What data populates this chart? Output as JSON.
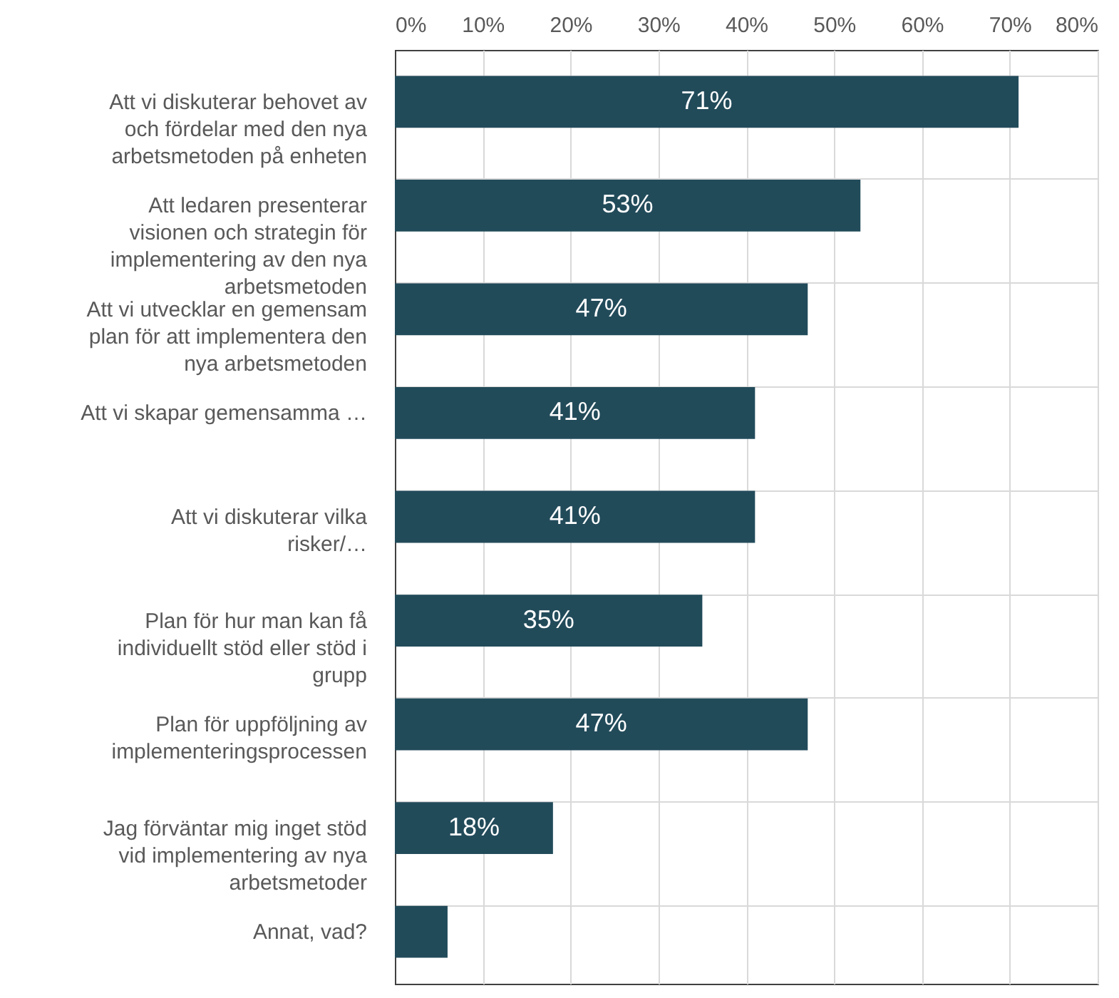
{
  "chart_data": {
    "type": "bar",
    "orientation": "horizontal",
    "categories": [
      "Att vi diskuterar behovet av och fördelar med den nya arbetsmetoden på enheten",
      "Att ledaren presenterar visionen och strategin för implementering av den nya arbetsmetoden",
      "Att vi utvecklar en gemensam plan för att implementera den nya arbetsmetoden",
      "Att vi skapar gemensamma …",
      "Att vi diskuterar vilka risker/…",
      "Plan för hur man kan få individuellt stöd eller stöd i grupp",
      "Plan för uppföljning av implementeringsprocessen",
      "Jag förväntar mig inget stöd vid implementering av nya arbetsmetoder",
      "Annat, vad?"
    ],
    "values": [
      71,
      53,
      47,
      41,
      41,
      35,
      47,
      18,
      6
    ],
    "value_labels": [
      "71%",
      "53%",
      "47%",
      "41%",
      "41%",
      "35%",
      "47%",
      "18%",
      null
    ],
    "color": "#224b5a",
    "xlim": [
      0,
      80
    ],
    "xticks": [
      {
        "value": 0,
        "label": "0%"
      },
      {
        "value": 10,
        "label": "10%"
      },
      {
        "value": 20,
        "label": "20%"
      },
      {
        "value": 30,
        "label": "30%"
      },
      {
        "value": 40,
        "label": "40%"
      },
      {
        "value": 50,
        "label": "50%"
      },
      {
        "value": 60,
        "label": "60%"
      },
      {
        "value": 70,
        "label": "70%"
      },
      {
        "value": 80,
        "label": "80%"
      }
    ],
    "grid": true
  }
}
